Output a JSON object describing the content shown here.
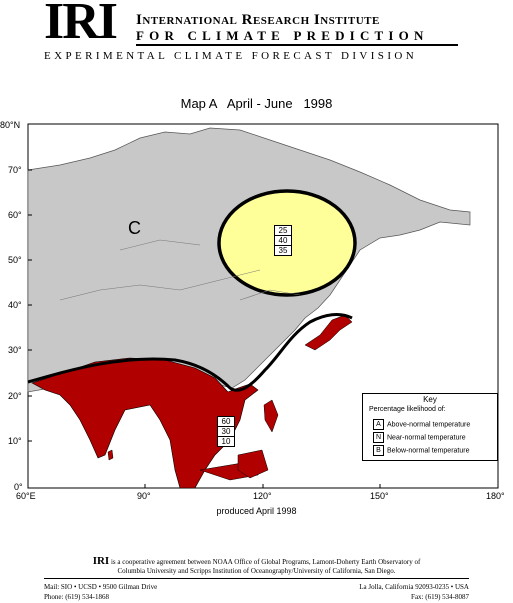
{
  "header": {
    "logo": "IRI",
    "org_line1": "International Research Institute",
    "org_line2": "FOR CLIMATE PREDICTION",
    "division": "EXPERIMENTAL CLIMATE FORECAST DIVISION"
  },
  "map": {
    "title": "Map A   April - June   1998",
    "lat_labels": [
      "80°N",
      "70°",
      "60°",
      "50°",
      "40°",
      "30°",
      "20°",
      "10°",
      "0°"
    ],
    "lon_labels": [
      "60°E",
      "90°",
      "120°",
      "150°",
      "180°"
    ],
    "region_label": "C",
    "produced": "produced April 1998",
    "colors": {
      "land": "#c8c8c8",
      "above": "#b00000",
      "near": "#ffff99",
      "outline": "#000000"
    }
  },
  "boxes": [
    {
      "values": [
        "25",
        "40",
        "35"
      ]
    },
    {
      "values": [
        "60",
        "30",
        "10"
      ]
    }
  ],
  "key": {
    "title": "Key",
    "subtitle": "Percentage likelihood of:",
    "rows": [
      {
        "code": "A",
        "label": "Above-normal temperature"
      },
      {
        "code": "N",
        "label": "Near-normal temperature"
      },
      {
        "code": "B",
        "label": "Below-normal temperature"
      }
    ]
  },
  "footer": {
    "line1_logo": "IRI",
    "line1_text": "is a cooperative agreement between NOAA Office of Global Programs, Lamont-Doherty Earth Observatory of",
    "line2_text": "Columbia University and Scripps Institution of Oceanography/University of California, San Diego.",
    "left1": "Mail: SIO • UCSD • 9500 Gilman Drive",
    "right1": "La Jolla, California 92093-0235 • USA",
    "left2": "Phone: (619) 534-1868",
    "right2": "Fax: (619) 534-8087"
  }
}
